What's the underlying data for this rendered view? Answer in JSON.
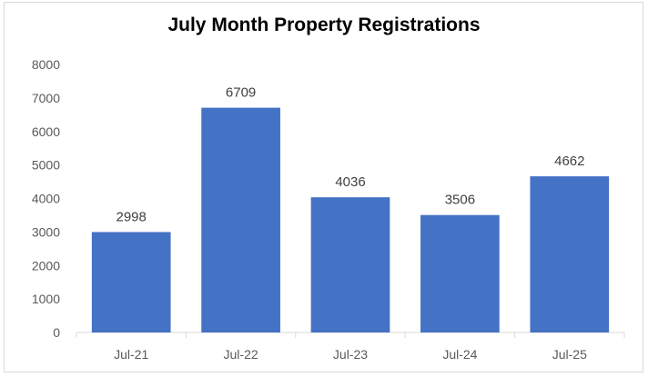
{
  "chart_data": {
    "type": "bar",
    "title": "July Month Property Registrations",
    "categories": [
      "Jul-21",
      "Jul-22",
      "Jul-23",
      "Jul-24",
      "Jul-25"
    ],
    "values": [
      2998,
      6709,
      4036,
      3506,
      4662
    ],
    "xlabel": "",
    "ylabel": "",
    "ylim": [
      0,
      8000
    ],
    "yticks": [
      0,
      1000,
      2000,
      3000,
      4000,
      5000,
      6000,
      7000,
      8000
    ],
    "grid": false,
    "legend": "none",
    "bar_color": "#4472c4",
    "data_labels": true
  }
}
